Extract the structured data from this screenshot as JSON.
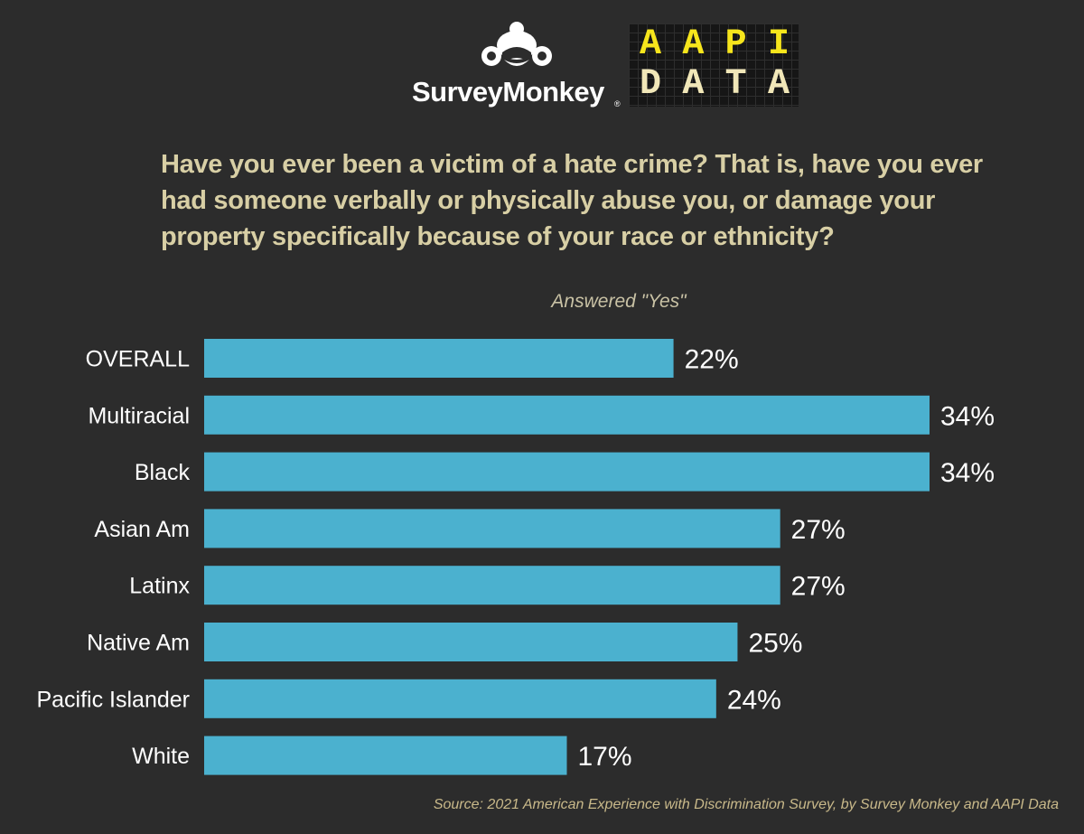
{
  "logos": {
    "surveymonkey_text": "SurveyMonkey",
    "surveymonkey_reg": "®",
    "aapi_line1": [
      "A",
      "A",
      "P",
      "I"
    ],
    "aapi_line2": [
      "D",
      "A",
      "T",
      "A"
    ]
  },
  "colors": {
    "background": "#2c2c2c",
    "bar": "#4bb1cf",
    "question_text": "#d8cfa5",
    "category_text": "#ffffff",
    "value_text": "#ffffff",
    "source_text": "#c9b98a"
  },
  "chart_data": {
    "type": "bar",
    "orientation": "horizontal",
    "title": "Have you ever been a victim of a hate crime? That is, have you ever had someone verbally or physically abuse you, or damage your property specifically because of your race or ethnicity?",
    "subtitle": "Answered \"Yes\"",
    "categories": [
      "OVERALL",
      "Multiracial",
      "Black",
      "Asian Am",
      "Latinx",
      "Native Am",
      "Pacific Islander",
      "White"
    ],
    "values": [
      22,
      34,
      34,
      27,
      27,
      25,
      24,
      17
    ],
    "value_labels": [
      "22%",
      "34%",
      "34%",
      "27%",
      "27%",
      "25%",
      "24%",
      "17%"
    ],
    "xlim": [
      0,
      34
    ],
    "grid": false,
    "legend": "none",
    "source": "Source: 2021 American Experience with Discrimination Survey, by Survey Monkey and AAPI Data"
  }
}
